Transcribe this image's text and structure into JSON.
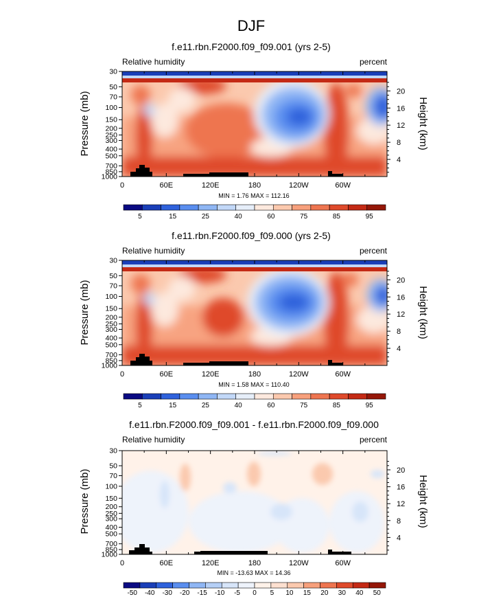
{
  "figure": {
    "season_title": "DJF"
  },
  "colors": {
    "rh_palette": [
      "#0a0a82",
      "#1a3fb8",
      "#2f62dc",
      "#5a8eef",
      "#8fb6f4",
      "#c2d8f8",
      "#e6eef9",
      "#fde9de",
      "#fbc9ae",
      "#f7a07c",
      "#ee7550",
      "#df4a2b",
      "#c42a15",
      "#951708"
    ],
    "diff_palette": [
      "#0a0a82",
      "#1a3fb8",
      "#2f62dc",
      "#5a8eef",
      "#8fb6f4",
      "#b5cff6",
      "#d7e5f9",
      "#eef3fb",
      "#fff2e9",
      "#fde0d0",
      "#fbc9ae",
      "#f7a07c",
      "#ee7550",
      "#df4a2b",
      "#c42a15",
      "#951708"
    ],
    "terrain": "#000000"
  },
  "chart_data": [
    {
      "type": "heatmap",
      "title": "f.e11.rbn.F2000.f09_f09.001 (yrs 2-5)",
      "left_label": "Relative humidity",
      "right_label": "percent",
      "ylabel": "Pressure (mb)",
      "y2label": "Height (km)",
      "xlabel": "",
      "x_ticks": [
        "0",
        "60E",
        "120E",
        "180",
        "120W",
        "60W"
      ],
      "x_tick_lon": [
        0,
        60,
        120,
        180,
        240,
        300
      ],
      "xlim": [
        0,
        360
      ],
      "y_ticks": [
        "1000",
        "850",
        "700",
        "500",
        "400",
        "300",
        "250",
        "200",
        "150",
        "100",
        "70",
        "50",
        "30"
      ],
      "y_tick_p": [
        1000,
        850,
        700,
        500,
        400,
        300,
        250,
        200,
        150,
        100,
        70,
        50,
        30
      ],
      "ylim_mb": [
        1000,
        30
      ],
      "y2_ticks": [
        "4",
        "8",
        "12",
        "16",
        "20"
      ],
      "y2_tick_km": [
        4,
        8,
        12,
        16,
        20
      ],
      "minmax_text": "MIN =   1.76  MAX = 112.16",
      "min": 1.76,
      "max": 112.16,
      "colorbar_labels": [
        "5",
        "15",
        "25",
        "40",
        "60",
        "75",
        "85",
        "95"
      ],
      "levels": [
        5,
        10,
        15,
        20,
        25,
        30,
        40,
        50,
        60,
        70,
        75,
        80,
        85,
        90,
        95
      ]
    },
    {
      "type": "heatmap",
      "title": "f.e11.rbn.F2000.f09_f09.000 (yrs 2-5)",
      "left_label": "Relative humidity",
      "right_label": "percent",
      "ylabel": "Pressure (mb)",
      "y2label": "Height (km)",
      "xlabel": "",
      "x_ticks": [
        "0",
        "60E",
        "120E",
        "180",
        "120W",
        "60W"
      ],
      "x_tick_lon": [
        0,
        60,
        120,
        180,
        240,
        300
      ],
      "xlim": [
        0,
        360
      ],
      "y_ticks": [
        "1000",
        "850",
        "700",
        "500",
        "400",
        "300",
        "250",
        "200",
        "150",
        "100",
        "70",
        "50",
        "30"
      ],
      "y_tick_p": [
        1000,
        850,
        700,
        500,
        400,
        300,
        250,
        200,
        150,
        100,
        70,
        50,
        30
      ],
      "ylim_mb": [
        1000,
        30
      ],
      "y2_ticks": [
        "4",
        "8",
        "12",
        "16",
        "20"
      ],
      "y2_tick_km": [
        4,
        8,
        12,
        16,
        20
      ],
      "minmax_text": "MIN =   1.58  MAX = 110.40",
      "min": 1.58,
      "max": 110.4,
      "colorbar_labels": [
        "5",
        "15",
        "25",
        "40",
        "60",
        "75",
        "85",
        "95"
      ],
      "levels": [
        5,
        10,
        15,
        20,
        25,
        30,
        40,
        50,
        60,
        70,
        75,
        80,
        85,
        90,
        95
      ]
    },
    {
      "type": "heatmap",
      "title": "f.e11.rbn.F2000.f09_f09.001 - f.e11.rbn.F2000.f09_f09.000",
      "left_label": "Relative humidity",
      "right_label": "percent",
      "ylabel": "Pressure (mb)",
      "y2label": "Height (km)",
      "xlabel": "",
      "x_ticks": [
        "0",
        "60E",
        "120E",
        "180",
        "120W",
        "60W"
      ],
      "x_tick_lon": [
        0,
        60,
        120,
        180,
        240,
        300
      ],
      "xlim": [
        0,
        360
      ],
      "y_ticks": [
        "1000",
        "850",
        "700",
        "500",
        "400",
        "300",
        "250",
        "200",
        "150",
        "100",
        "70",
        "50",
        "30"
      ],
      "y_tick_p": [
        1000,
        850,
        700,
        500,
        400,
        300,
        250,
        200,
        150,
        100,
        70,
        50,
        30
      ],
      "ylim_mb": [
        1000,
        30
      ],
      "y2_ticks": [
        "4",
        "8",
        "12",
        "16",
        "20"
      ],
      "y2_tick_km": [
        4,
        8,
        12,
        16,
        20
      ],
      "minmax_text": "MIN = -13.63  MAX =  14.36",
      "min": -13.63,
      "max": 14.36,
      "colorbar_labels": [
        "-50",
        "-40",
        "-30",
        "-20",
        "-15",
        "-10",
        "-5",
        "0",
        "5",
        "10",
        "15",
        "20",
        "30",
        "40",
        "50"
      ],
      "levels": [
        -50,
        -40,
        -30,
        -20,
        -15,
        -10,
        -5,
        0,
        5,
        10,
        15,
        20,
        30,
        40,
        50
      ]
    }
  ]
}
